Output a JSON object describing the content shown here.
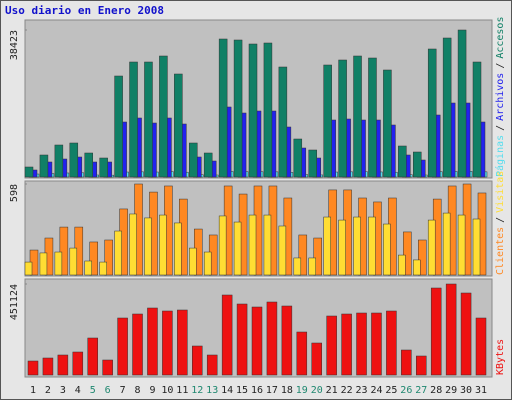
{
  "chart_data": [
    {
      "type": "bar",
      "title": "Uso diario en Enero 2008",
      "ylim": [
        0,
        38423
      ],
      "yticks": [
        38423
      ],
      "legend_separator": "/",
      "series": [
        {
          "name": "Páginas",
          "color": "#55ddee",
          "values": [
            780,
            900,
            1050,
            1100,
            520,
            480,
            1300,
            1350,
            1300,
            1400,
            1250,
            600,
            520,
            1450,
            1400,
            1380,
            1350,
            1200,
            620,
            540,
            1300,
            1350,
            1380,
            1320,
            1250,
            600,
            520,
            1400,
            1450,
            1500,
            1350
          ]
        },
        {
          "name": "Archivos",
          "color": "#2222ee",
          "values": [
            1830,
            3921,
            4705,
            5228,
            3921,
            3921,
            14377,
            15422,
            14115,
            15422,
            13854,
            5228,
            4182,
            18298,
            16729,
            17252,
            17252,
            13070,
            7580,
            4966,
            14899,
            15161,
            14899,
            14899,
            13592,
            5751,
            4444,
            16206,
            19343,
            19343,
            14377
          ]
        },
        {
          "name": "Accesos",
          "color": "#108066",
          "values": [
            2614,
            5750,
            8364,
            8887,
            6273,
            4966,
            26400,
            30059,
            30059,
            31627,
            26922,
            8887,
            6273,
            36070,
            35809,
            34764,
            35025,
            28752,
            9932,
            7057,
            29274,
            30581,
            31627,
            31104,
            27967,
            8103,
            6534,
            33456,
            36332,
            38423,
            30059
          ]
        }
      ]
    },
    {
      "type": "bar",
      "ylim": [
        0,
        598
      ],
      "yticks": [
        598
      ],
      "legend_separator": "/",
      "series": [
        {
          "name": "Clientes",
          "color": "#ff8822",
          "values": [
            164,
            243,
            315,
            315,
            217,
            230,
            434,
            598,
            545,
            585,
            499,
            302,
            263,
            585,
            532,
            585,
            585,
            506,
            263,
            243,
            559,
            559,
            506,
            480,
            506,
            283,
            230,
            499,
            585,
            598,
            539
          ]
        },
        {
          "name": "Visitas",
          "color": "#ffdd33",
          "values": [
            85,
            145,
            151,
            177,
            92,
            85,
            289,
            401,
            375,
            394,
            342,
            177,
            151,
            388,
            348,
            394,
            394,
            322,
            112,
            112,
            381,
            361,
            381,
            381,
            335,
            131,
            99,
            361,
            407,
            394,
            368
          ]
        }
      ]
    },
    {
      "type": "bar",
      "ylim": [
        0,
        451124
      ],
      "yticks": [
        451124
      ],
      "categories": [
        "1",
        "2",
        "3",
        "4",
        "5",
        "6",
        "7",
        "8",
        "9",
        "10",
        "11",
        "12",
        "13",
        "14",
        "15",
        "16",
        "17",
        "18",
        "19",
        "20",
        "21",
        "22",
        "23",
        "24",
        "25",
        "26",
        "27",
        "28",
        "29",
        "30",
        "31"
      ],
      "category_colors": [
        "#222222",
        "#222222",
        "#222222",
        "#222222",
        "#208870",
        "#208870",
        "#222222",
        "#222222",
        "#222222",
        "#222222",
        "#222222",
        "#208870",
        "#208870",
        "#222222",
        "#222222",
        "#222222",
        "#222222",
        "#222222",
        "#208870",
        "#208870",
        "#222222",
        "#222222",
        "#222222",
        "#222222",
        "#222222",
        "#208870",
        "#208870",
        "#222222",
        "#222222",
        "#222222",
        "#222222"
      ],
      "series": [
        {
          "name": "KBytes",
          "color": "#ee1111",
          "values": [
            69402,
            84274,
            99146,
            114018,
            183422,
            74360,
            282567,
            302396,
            332140,
            317268,
            322225,
            143763,
            99146,
            396592,
            351976,
            337103,
            361888,
            342060,
            213165,
            158637,
            292482,
            302396,
            307354,
            307354,
            317268,
            123934,
            94190,
            431294,
            451124,
            406506,
            282567
          ]
        }
      ]
    }
  ]
}
